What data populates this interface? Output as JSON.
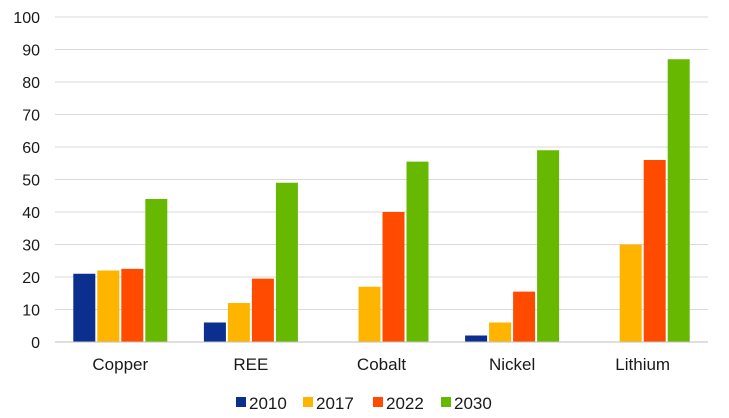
{
  "chart_data": {
    "type": "bar",
    "categories": [
      "Copper",
      "REE",
      "Cobalt",
      "Nickel",
      "Lithium"
    ],
    "series": [
      {
        "name": "2010",
        "color": "#0a2f8f",
        "values": [
          21,
          6,
          0,
          2,
          0
        ]
      },
      {
        "name": "2017",
        "color": "#ffb400",
        "values": [
          22,
          12,
          17,
          6,
          30
        ]
      },
      {
        "name": "2022",
        "color": "#ff4b00",
        "values": [
          22.5,
          19.5,
          40,
          15.5,
          56
        ]
      },
      {
        "name": "2030",
        "color": "#66b800",
        "values": [
          44,
          49,
          55.5,
          59,
          87
        ]
      }
    ],
    "ylim": [
      0,
      100
    ],
    "yticks": [
      "0",
      "10",
      "20",
      "30",
      "40",
      "50",
      "60",
      "70",
      "80",
      "90",
      "100"
    ],
    "grid": true,
    "legend_position": "bottom"
  }
}
